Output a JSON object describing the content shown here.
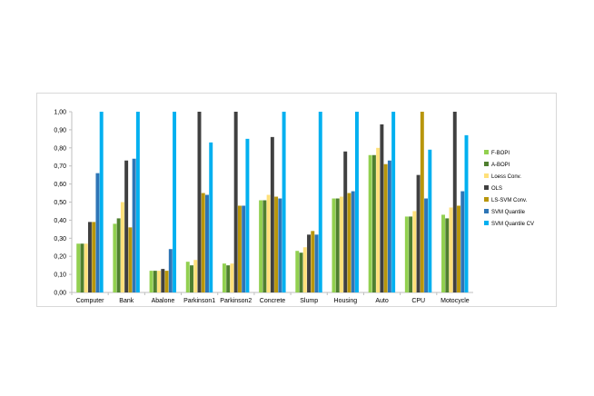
{
  "chart_data": {
    "type": "bar",
    "title": "",
    "xlabel": "",
    "ylabel": "",
    "ylim": [
      0,
      1
    ],
    "yticks": [
      "0,00",
      "0,10",
      "0,20",
      "0,30",
      "0,40",
      "0,50",
      "0,60",
      "0,70",
      "0,80",
      "0,90",
      "1,00"
    ],
    "grid": false,
    "legend_position": "right",
    "categories": [
      "Computer",
      "Bank",
      "Abalone",
      "Parkinson1",
      "Parkinson2",
      "Concrete",
      "Slump",
      "Housing",
      "Auto",
      "CPU",
      "Motocycle"
    ],
    "series": [
      {
        "name": "F-BOPI",
        "color": "#92d050",
        "values": [
          0.27,
          0.38,
          0.12,
          0.17,
          0.16,
          0.51,
          0.23,
          0.52,
          0.76,
          0.42,
          0.43
        ]
      },
      {
        "name": "A-BOPI",
        "color": "#4f7f2f",
        "values": [
          0.27,
          0.41,
          0.12,
          0.15,
          0.15,
          0.51,
          0.22,
          0.52,
          0.76,
          0.42,
          0.41
        ]
      },
      {
        "name": "Loess Conv.",
        "color": "#ffe07a",
        "values": [
          0.27,
          0.5,
          0.12,
          0.18,
          0.16,
          0.54,
          0.25,
          0.53,
          0.8,
          0.45,
          0.47
        ]
      },
      {
        "name": "OLS",
        "color": "#404040",
        "values": [
          0.39,
          0.73,
          0.13,
          1.0,
          1.0,
          0.86,
          0.32,
          0.78,
          0.93,
          0.65,
          1.0
        ]
      },
      {
        "name": "LS-SVM Conv.",
        "color": "#b8960c",
        "values": [
          0.39,
          0.36,
          0.12,
          0.55,
          0.48,
          0.53,
          0.34,
          0.55,
          0.71,
          1.0,
          0.48
        ]
      },
      {
        "name": "SVM Quantile",
        "color": "#2e75b6",
        "values": [
          0.66,
          0.74,
          0.24,
          0.54,
          0.48,
          0.52,
          0.32,
          0.56,
          0.73,
          0.52,
          0.56
        ]
      },
      {
        "name": "SVM Quantile CV",
        "color": "#00b0f0",
        "values": [
          1.0,
          1.0,
          1.0,
          0.83,
          0.85,
          1.0,
          1.0,
          1.0,
          1.0,
          0.79,
          0.87
        ]
      }
    ]
  }
}
